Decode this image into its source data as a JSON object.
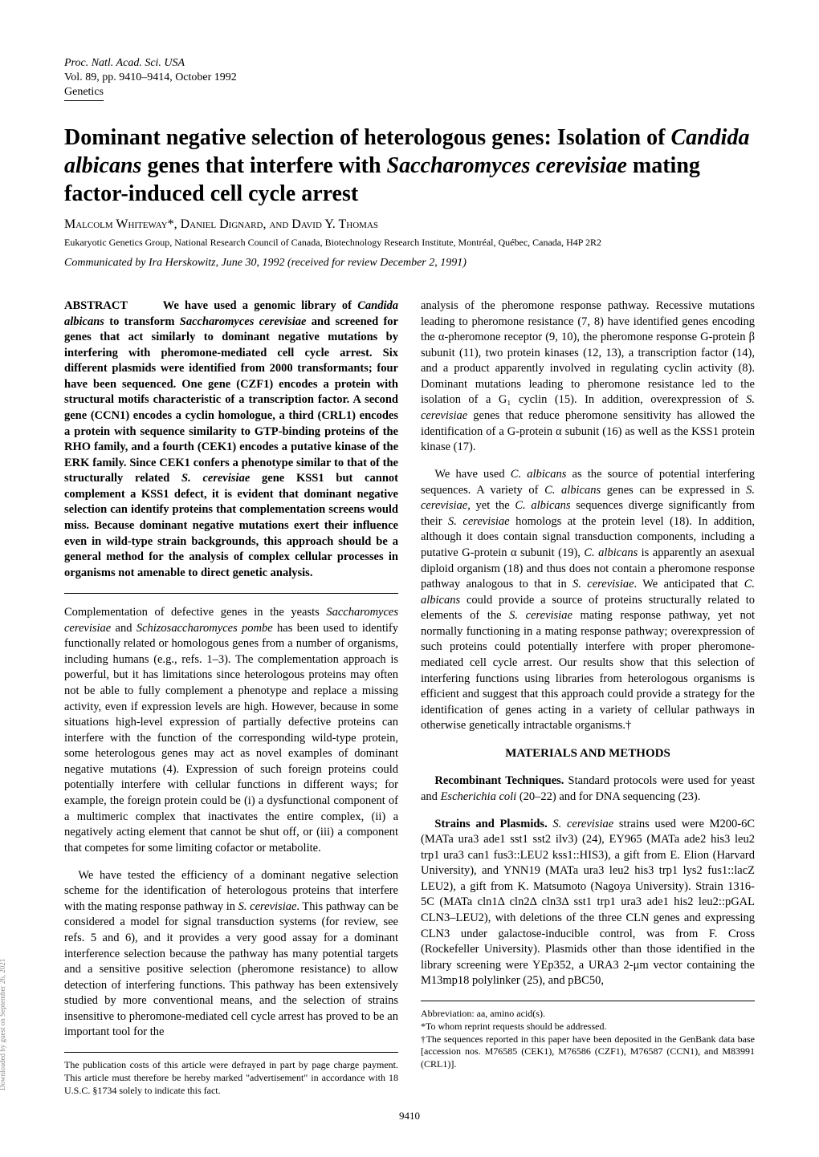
{
  "header": {
    "line1": "Proc. Natl. Acad. Sci. USA",
    "line2": "Vol. 89, pp. 9410–9414, October 1992",
    "line3": "Genetics"
  },
  "title_parts": {
    "p1": "Dominant negative selection of heterologous genes: Isolation of ",
    "p2_italic": "Candida albicans",
    "p3": " genes that interfere with ",
    "p4_italic": "Saccharomyces cerevisiae",
    "p5": " mating factor-induced cell cycle arrest"
  },
  "authors": "Malcolm Whiteway*, Daniel Dignard, and David Y. Thomas",
  "affiliation": "Eukaryotic Genetics Group, National Research Council of Canada, Biotechnology Research Institute, Montréal, Québec, Canada, H4P 2R2",
  "communicated": "Communicated by Ira Herskowitz, June 30, 1992 (received for review December 2, 1991)",
  "abstract": {
    "label": "ABSTRACT",
    "pre": "We have used a genomic library of ",
    "i1": "Candida albicans",
    "mid1": " to transform ",
    "i2": "Saccharomyces cerevisiae",
    "body": " and screened for genes that act similarly to dominant negative mutations by interfering with pheromone-mediated cell cycle arrest. Six different plasmids were identified from 2000 transformants; four have been sequenced. One gene (CZF1) encodes a protein with structural motifs characteristic of a transcription factor. A second gene (CCN1) encodes a cyclin homologue, a third (CRL1) encodes a protein with sequence similarity to GTP-binding proteins of the RHO family, and a fourth (CEK1) encodes a putative kinase of the ERK family. Since CEK1 confers a phenotype similar to that of the structurally related ",
    "i3": "S. cerevisiae",
    "body2": " gene KSS1 but cannot complement a KSS1 defect, it is evident that dominant negative selection can identify proteins that complementation screens would miss. Because dominant negative mutations exert their influence even in wild-type strain backgrounds, this approach should be a general method for the analysis of complex cellular processes in organisms not amenable to direct genetic analysis."
  },
  "col1": {
    "p1a": "Complementation of defective genes in the yeasts ",
    "p1i1": "Saccharomyces cerevisiae",
    "p1b": " and ",
    "p1i2": "Schizosaccharomyces pombe",
    "p1c": " has been used to identify functionally related or homologous genes from a number of organisms, including humans (e.g., refs. 1–3). The complementation approach is powerful, but it has limitations since heterologous proteins may often not be able to fully complement a phenotype and replace a missing activity, even if expression levels are high. However, because in some situations high-level expression of partially defective proteins can interfere with the function of the corresponding wild-type protein, some heterologous genes may act as novel examples of dominant negative mutations (4). Expression of such foreign proteins could potentially interfere with cellular functions in different ways; for example, the foreign protein could be (i) a dysfunctional component of a multimeric complex that inactivates the entire complex, (ii) a negatively acting element that cannot be shut off, or (iii) a component that competes for some limiting cofactor or metabolite.",
    "p2a": "We have tested the efficiency of a dominant negative selection scheme for the identification of heterologous proteins that interfere with the mating response pathway in ",
    "p2i1": "S. cerevisiae",
    "p2b": ". This pathway can be considered a model for signal transduction systems (for review, see refs. 5 and 6), and it provides a very good assay for a dominant interference selection because the pathway has many potential targets and a sensitive positive selection (pheromone resistance) to allow detection of interfering functions. This pathway has been extensively studied by more conventional means, and the selection of strains insensitive to pheromone-mediated cell cycle arrest has proved to be an important tool for the",
    "footnote": "The publication costs of this article were defrayed in part by page charge payment. This article must therefore be hereby marked \"advertisement\" in accordance with 18 U.S.C. §1734 solely to indicate this fact."
  },
  "col2": {
    "p1a": "analysis of the pheromone response pathway. Recessive mutations leading to pheromone resistance (7, 8) have identified genes encoding the α-pheromone receptor (9, 10), the pheromone response G-protein β subunit (11), two protein kinases (12, 13), a transcription factor (14), and a product apparently involved in regulating cyclin activity (8). Dominant mutations leading to pheromone resistance led to the isolation of a G₁ cyclin (15). In addition, overexpression of ",
    "p1i1": "S. cerevisiae",
    "p1b": " genes that reduce pheromone sensitivity has allowed the identification of a G-protein α subunit (16) as well as the KSS1 protein kinase (17).",
    "p2a": "We have used ",
    "p2i1": "C. albicans",
    "p2b": " as the source of potential interfering sequences. A variety of ",
    "p2i2": "C. albicans",
    "p2c": " genes can be expressed in ",
    "p2i3": "S. cerevisiae",
    "p2d": ", yet the ",
    "p2i4": "C. albicans",
    "p2e": " sequences diverge significantly from their ",
    "p2i5": "S. cerevisiae",
    "p2f": " homologs at the protein level (18). In addition, although it does contain signal transduction components, including a putative G-protein α subunit (19), ",
    "p2i6": "C. albicans",
    "p2g": " is apparently an asexual diploid organism (18) and thus does not contain a pheromone response pathway analogous to that in ",
    "p2i7": "S. cerevisiae",
    "p2h": ". We anticipated that ",
    "p2i8": "C. albicans",
    "p2i": " could provide a source of proteins structurally related to elements of the ",
    "p2i9": "S. cerevisiae",
    "p2j": " mating response pathway, yet not normally functioning in a mating response pathway; overexpression of such proteins could potentially interfere with proper pheromone-mediated cell cycle arrest. Our results show that this selection of interfering functions using libraries from heterologous organisms is efficient and suggest that this approach could provide a strategy for the identification of genes acting in a variety of cellular pathways in otherwise genetically intractable organisms.†",
    "section": "MATERIALS AND METHODS",
    "p3a": "Recombinant Techniques. ",
    "p3b": "Standard protocols were used for yeast and ",
    "p3i1": "Escherichia coli",
    "p3c": " (20–22) and for DNA sequencing (23).",
    "p4a": "Strains and Plasmids. ",
    "p4i1": "S. cerevisiae",
    "p4b": " strains used were M200-6C (MATa ura3 ade1 sst1 sst2 ilv3) (24), EY965 (MATa ade2 his3 leu2 trp1 ura3 can1 fus3::LEU2 kss1::HIS3), a gift from E. Elion (Harvard University), and YNN19 (MATa ura3 leu2 his3 trp1 lys2 fus1::lacZ LEU2), a gift from K. Matsumoto (Nagoya University). Strain 1316-5C (MATa cln1Δ cln2Δ cln3Δ sst1 trp1 ura3 ade1 his2 leu2::pGAL CLN3–LEU2), with deletions of the three CLN genes and expressing CLN3 under galactose-inducible control, was from F. Cross (Rockefeller University). Plasmids other than those identified in the library screening were YEp352, a URA3 2-μm vector containing the M13mp18 polylinker (25), and pBC50,",
    "fn1": "Abbreviation: aa, amino acid(s).",
    "fn2": "*To whom reprint requests should be addressed.",
    "fn3": "†The sequences reported in this paper have been deposited in the GenBank data base [accession nos. M76585 (CEK1), M76586 (CZF1), M76587 (CCN1), and M83991 (CRL1)]."
  },
  "pagenum": "9410",
  "sidetext": "Downloaded by guest on September 26, 2021"
}
